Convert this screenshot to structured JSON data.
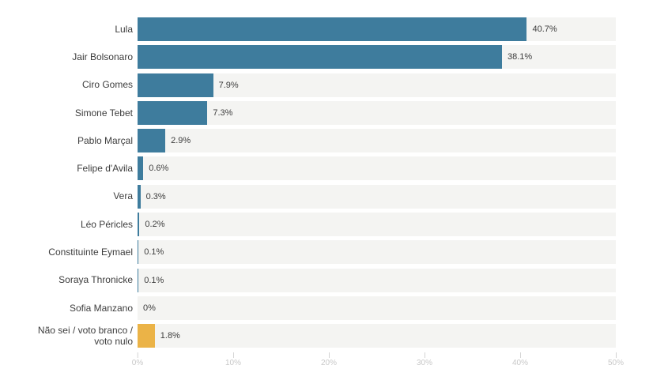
{
  "colors": {
    "background": "#ffffff",
    "bar_default": "#3e7c9d",
    "bar_highlight": "#ebb347",
    "row_background": "#f4f4f2",
    "label_text": "#3d3d3d",
    "value_text": "#3d3d3d",
    "axis_text": "#c8c8c8",
    "axis_tick": "#d4d4d4"
  },
  "chart_data": {
    "type": "bar",
    "orientation": "horizontal",
    "title": "",
    "xlabel": "",
    "ylabel": "",
    "xlim": [
      0,
      50
    ],
    "grid": false,
    "legend": false,
    "categories": [
      "Lula",
      "Jair Bolsonaro",
      "Ciro Gomes",
      "Simone Tebet",
      "Pablo Marçal",
      "Felipe d'Avila",
      "Vera",
      "Léo Péricles",
      "Constituinte Eymael",
      "Soraya Thronicke",
      "Sofia Manzano",
      "Não sei / voto branco /\nvoto nulo"
    ],
    "values": [
      40.7,
      38.1,
      7.9,
      7.3,
      2.9,
      0.6,
      0.3,
      0.2,
      0.1,
      0.1,
      0,
      1.8
    ],
    "value_labels": [
      "40.7%",
      "38.1%",
      "7.9%",
      "7.3%",
      "2.9%",
      "0.6%",
      "0.3%",
      "0.2%",
      "0.1%",
      "0.1%",
      "0%",
      "1.8%"
    ],
    "bar_colors": [
      "#3e7c9d",
      "#3e7c9d",
      "#3e7c9d",
      "#3e7c9d",
      "#3e7c9d",
      "#3e7c9d",
      "#3e7c9d",
      "#3e7c9d",
      "#3e7c9d",
      "#3e7c9d",
      "#3e7c9d",
      "#ebb347"
    ],
    "x_ticks": [
      "0%",
      "10%",
      "20%",
      "30%",
      "40%",
      "50%"
    ]
  }
}
